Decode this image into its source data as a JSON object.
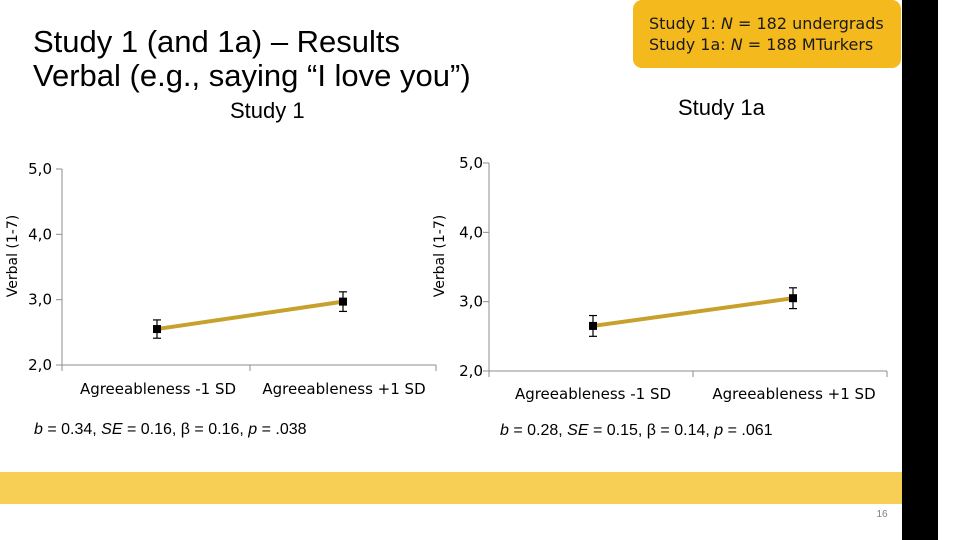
{
  "slide": {
    "title_line1": "Study 1 (and 1a) – Results",
    "title_line2": "Verbal (e.g., saying “I love you”)",
    "info_line1_prefix": "Study 1: ",
    "info_line1_n": "N",
    "info_line1_rest": " = 182 undergrads",
    "info_line2_prefix": "Study 1a: ",
    "info_line2_n": "N",
    "info_line2_rest": " = 188 MTurkers",
    "page_number": "16"
  },
  "colors": {
    "accent": "#f4ba1d",
    "band": "#f7cf55",
    "line": "#c8a02c",
    "sidebar": "#000000"
  },
  "study1": {
    "subtitle": "Study 1",
    "stats": [
      {
        "k": "b",
        "v": " = 0.34, "
      },
      {
        "k": "SE",
        "v": " = 0.16, β = 0.16, "
      },
      {
        "k": "p",
        "v": " = .038"
      }
    ]
  },
  "study1a": {
    "subtitle": "Study 1a",
    "stats": [
      {
        "k": "b",
        "v": " = 0.28, "
      },
      {
        "k": "SE",
        "v": " = 0.15, β = 0.14, "
      },
      {
        "k": "p",
        "v": " = .061"
      }
    ]
  },
  "chart_data": [
    {
      "type": "line",
      "title": "Study 1",
      "ylabel": "Verbal (1-7)",
      "xlabel": "",
      "ylim": [
        2.0,
        5.0
      ],
      "yticks": [
        "2,0",
        "3,0",
        "4,0",
        "5,0"
      ],
      "categories": [
        "Agreeableness -1 SD",
        "Agreeableness +1 SD"
      ],
      "series": [
        {
          "values": [
            2.55,
            2.97
          ],
          "errors": [
            0.14,
            0.15
          ]
        }
      ],
      "grid": false
    },
    {
      "type": "line",
      "title": "Study 1a",
      "ylabel": "Verbal (1-7)",
      "xlabel": "",
      "ylim": [
        2.0,
        5.0
      ],
      "yticks": [
        "2,0",
        "3,0",
        "4,0",
        "5,0"
      ],
      "categories": [
        "Agreeableness  -1 SD",
        "Agreeableness  +1 SD"
      ],
      "series": [
        {
          "values": [
            2.65,
            3.05
          ],
          "errors": [
            0.15,
            0.15
          ]
        }
      ],
      "grid": false
    }
  ]
}
